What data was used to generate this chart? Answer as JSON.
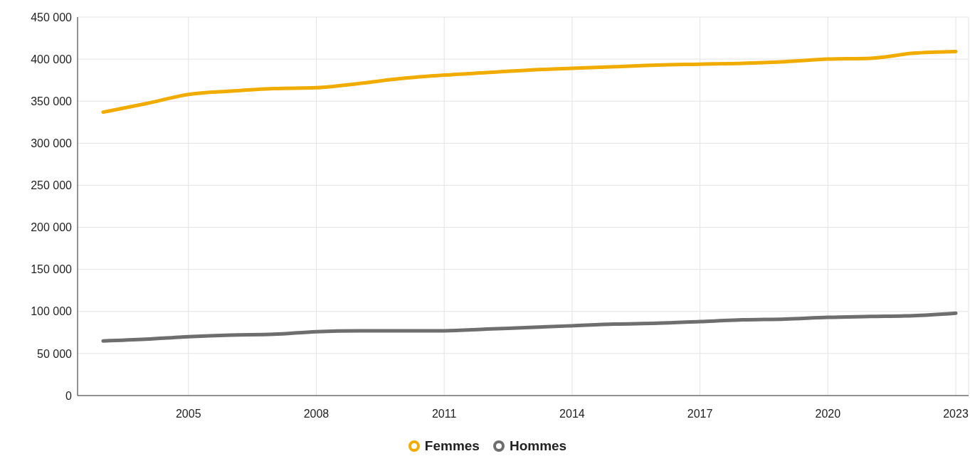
{
  "chart_data": {
    "type": "line",
    "x": [
      2003,
      2004,
      2005,
      2006,
      2007,
      2008,
      2009,
      2010,
      2011,
      2012,
      2013,
      2014,
      2015,
      2016,
      2017,
      2018,
      2019,
      2020,
      2021,
      2022,
      2023
    ],
    "series": [
      {
        "name": "Femmes",
        "color": "#f0ac00",
        "values": [
          337000,
          347000,
          358000,
          362000,
          365000,
          366000,
          371000,
          377000,
          381000,
          384000,
          387000,
          389000,
          391000,
          393000,
          394000,
          395000,
          397000,
          400000,
          401000,
          407000,
          409000
        ]
      },
      {
        "name": "Hommes",
        "color": "#6e6e6e",
        "values": [
          65000,
          67000,
          70000,
          72000,
          73000,
          76000,
          77000,
          77000,
          77000,
          79000,
          81000,
          83000,
          85000,
          86000,
          88000,
          90000,
          91000,
          93000,
          94000,
          95000,
          98000
        ]
      }
    ],
    "xlim": [
      2002.4,
      2023.3
    ],
    "xticks": [
      2005,
      2008,
      2011,
      2014,
      2017,
      2020,
      2023
    ],
    "ylim": [
      0,
      450000
    ],
    "yticks": [
      0,
      {
        "value": 50000,
        "label": "50 000"
      },
      {
        "value": 100000,
        "label": "100 000"
      },
      {
        "value": 150000,
        "label": "150 000"
      },
      {
        "value": 200000,
        "label": "200 000"
      },
      {
        "value": 250000,
        "label": "250 000"
      },
      {
        "value": 300000,
        "label": "300 000"
      },
      {
        "value": 350000,
        "label": "350 000"
      },
      {
        "value": 400000,
        "label": "400 000"
      },
      {
        "value": 450000,
        "label": "450 000"
      }
    ],
    "grid": true,
    "legend": "bottom",
    "marker": "none",
    "line_style": "solid"
  }
}
